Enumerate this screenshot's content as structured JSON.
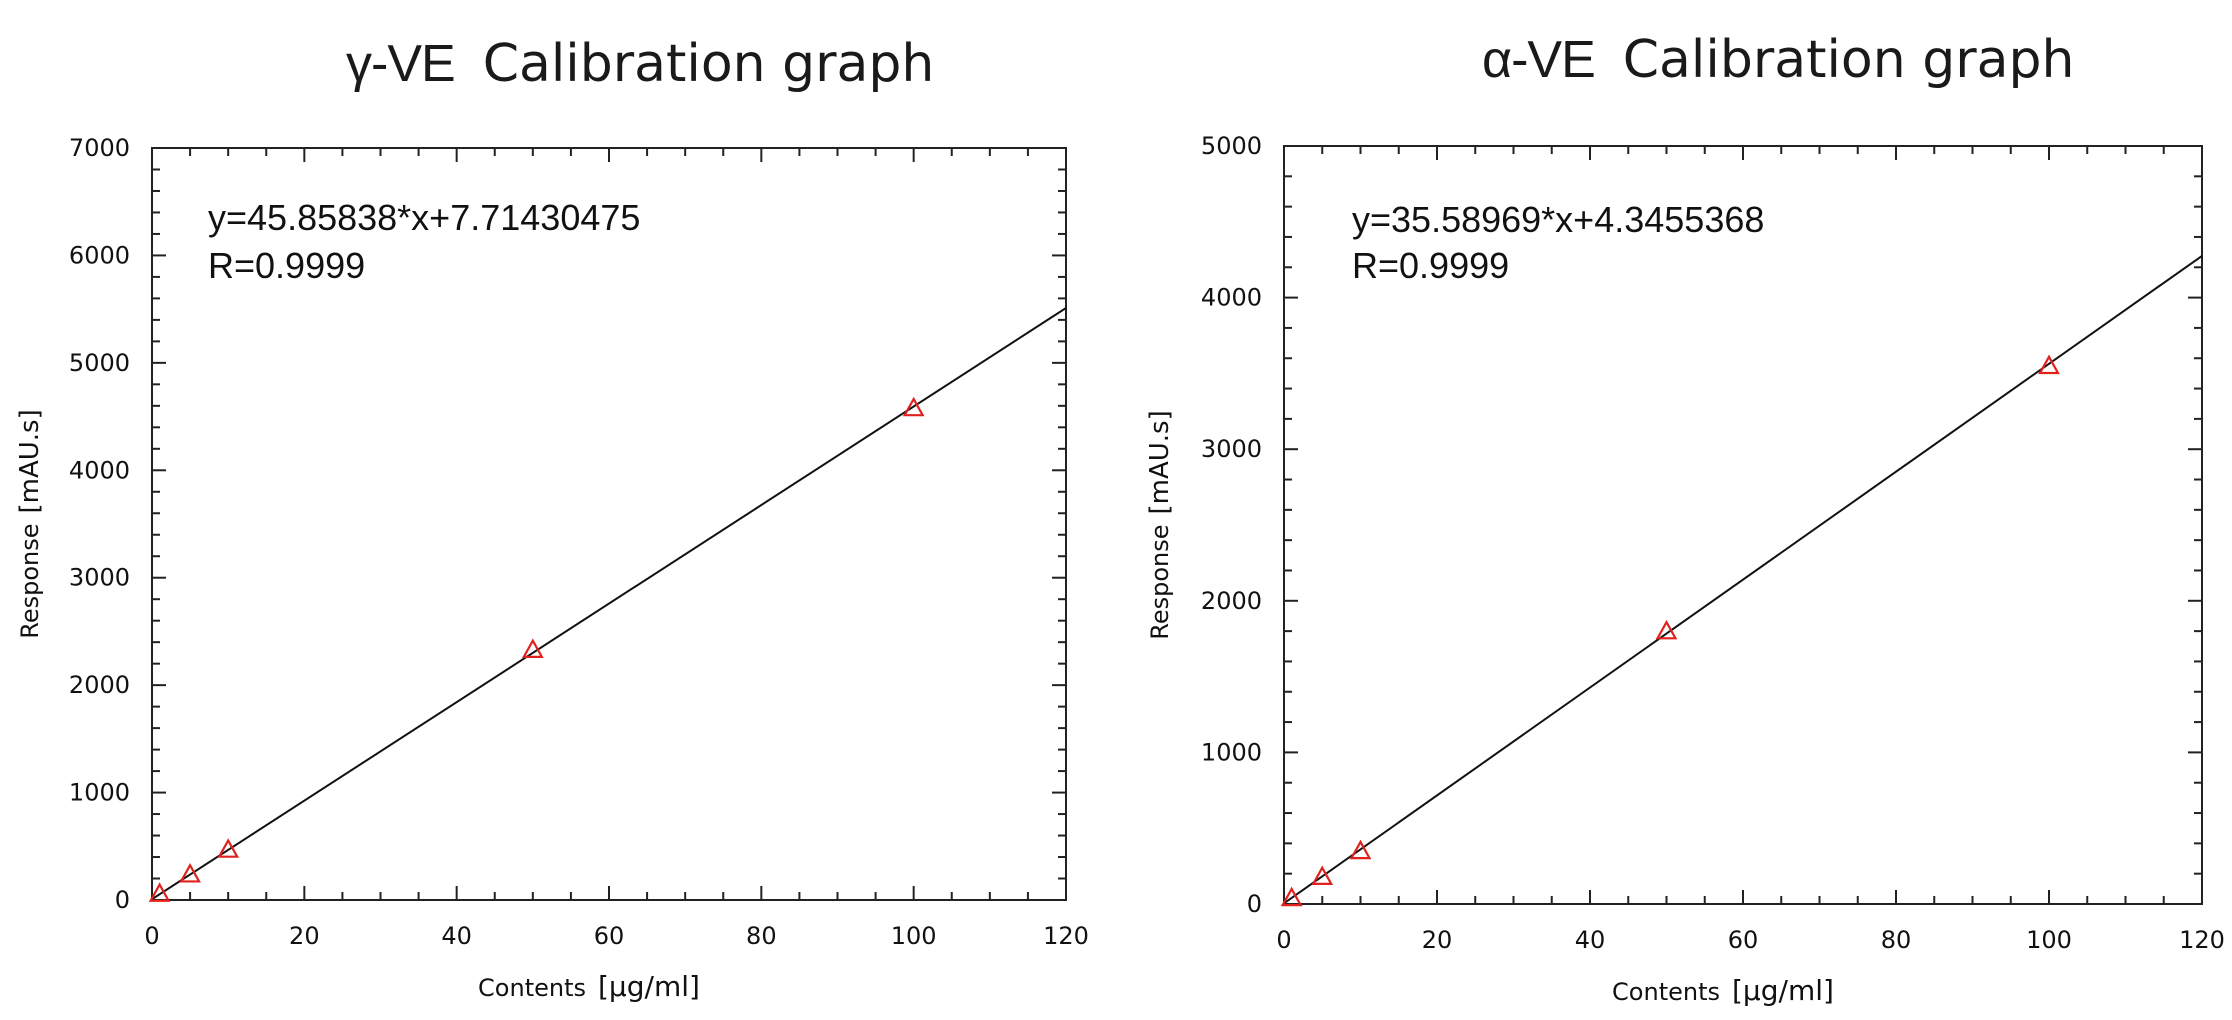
{
  "chart_data": [
    {
      "type": "scatter",
      "title_series": "γ-VE",
      "title_text": "Calibration graph",
      "xlabel_main": "Contents",
      "xlabel_unit": "[μg/ml]",
      "ylabel_main": "Response",
      "ylabel_unit": "[mAU.s]",
      "xlim": [
        0,
        120
      ],
      "ylim": [
        0,
        7000
      ],
      "xticks": [
        0,
        20,
        40,
        60,
        80,
        100,
        120
      ],
      "yticks": [
        0,
        1000,
        2000,
        3000,
        4000,
        5000,
        6000,
        7000
      ],
      "grid": false,
      "equation": "y=45.85838*x+7.71430475",
      "r_value": "R=0.9999",
      "fit": {
        "slope": 45.85838,
        "intercept": 7.71430475
      },
      "points": [
        {
          "x": 1,
          "y": 60
        },
        {
          "x": 5,
          "y": 240
        },
        {
          "x": 10,
          "y": 470
        },
        {
          "x": 50,
          "y": 2330
        },
        {
          "x": 100,
          "y": 4580
        }
      ],
      "marker_color": "#e0221f",
      "line_color": "#111111"
    },
    {
      "type": "scatter",
      "title_series": "α-VE",
      "title_text": "Calibration graph",
      "xlabel_main": "Contents",
      "xlabel_unit": "[μg/ml]",
      "ylabel_main": "Response",
      "ylabel_unit": "[mAU.s]",
      "xlim": [
        0,
        120
      ],
      "ylim": [
        0,
        5000
      ],
      "xticks": [
        0,
        20,
        40,
        60,
        80,
        100,
        120
      ],
      "yticks": [
        0,
        1000,
        2000,
        3000,
        4000,
        5000
      ],
      "grid": false,
      "equation": "y=35.58969*x+4.3455368",
      "r_value": "R=0.9999",
      "fit": {
        "slope": 35.58969,
        "intercept": 4.3455368
      },
      "points": [
        {
          "x": 1,
          "y": 40
        },
        {
          "x": 5,
          "y": 180
        },
        {
          "x": 10,
          "y": 350
        },
        {
          "x": 50,
          "y": 1800
        },
        {
          "x": 100,
          "y": 3550
        }
      ],
      "marker_color": "#e0221f",
      "line_color": "#111111"
    }
  ]
}
